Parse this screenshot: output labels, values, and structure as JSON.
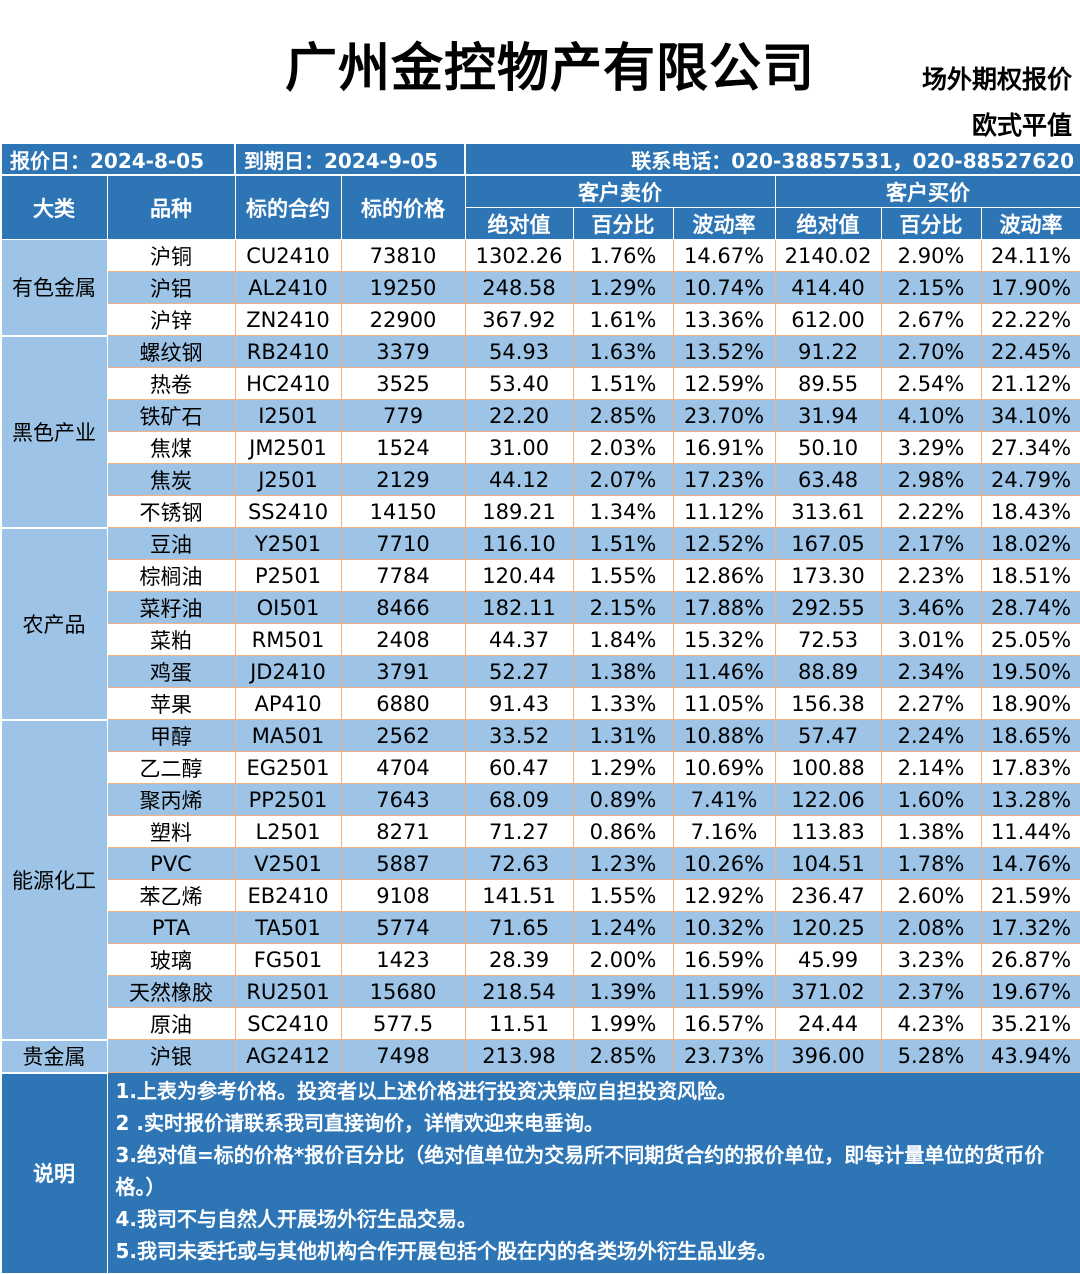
{
  "header": {
    "company": "广州金控物产有限公司",
    "subtitle1": "场外期权报价",
    "subtitle2": "欧式平值"
  },
  "info": {
    "quote_date": "报价日：2024-8-05",
    "expiry_date": "到期日：2024-9-05",
    "contact": "联系电话：020-38857531，020-88527620"
  },
  "columns": {
    "category": "大类",
    "variety": "品种",
    "contract": "标的合约",
    "price": "标的价格",
    "sell_group": "客户卖价",
    "buy_group": "客户买价",
    "abs": "绝对值",
    "pct": "百分比",
    "vol": "波动率"
  },
  "groups": [
    {
      "category": "有色金属",
      "rows": [
        [
          "沪铜",
          "CU2410",
          "73810",
          "1302.26",
          "1.76%",
          "14.67%",
          "2140.02",
          "2.90%",
          "24.11%"
        ],
        [
          "沪铝",
          "AL2410",
          "19250",
          "248.58",
          "1.29%",
          "10.74%",
          "414.40",
          "2.15%",
          "17.90%"
        ],
        [
          "沪锌",
          "ZN2410",
          "22900",
          "367.92",
          "1.61%",
          "13.36%",
          "612.00",
          "2.67%",
          "22.22%"
        ]
      ]
    },
    {
      "category": "黑色产业",
      "rows": [
        [
          "螺纹钢",
          "RB2410",
          "3379",
          "54.93",
          "1.63%",
          "13.52%",
          "91.22",
          "2.70%",
          "22.45%"
        ],
        [
          "热卷",
          "HC2410",
          "3525",
          "53.40",
          "1.51%",
          "12.59%",
          "89.55",
          "2.54%",
          "21.12%"
        ],
        [
          "铁矿石",
          "I2501",
          "779",
          "22.20",
          "2.85%",
          "23.70%",
          "31.94",
          "4.10%",
          "34.10%"
        ],
        [
          "焦煤",
          "JM2501",
          "1524",
          "31.00",
          "2.03%",
          "16.91%",
          "50.10",
          "3.29%",
          "27.34%"
        ],
        [
          "焦炭",
          "J2501",
          "2129",
          "44.12",
          "2.07%",
          "17.23%",
          "63.48",
          "2.98%",
          "24.79%"
        ],
        [
          "不锈钢",
          "SS2410",
          "14150",
          "189.21",
          "1.34%",
          "11.12%",
          "313.61",
          "2.22%",
          "18.43%"
        ]
      ]
    },
    {
      "category": "农产品",
      "rows": [
        [
          "豆油",
          "Y2501",
          "7710",
          "116.10",
          "1.51%",
          "12.52%",
          "167.05",
          "2.17%",
          "18.02%"
        ],
        [
          "棕榈油",
          "P2501",
          "7784",
          "120.44",
          "1.55%",
          "12.86%",
          "173.30",
          "2.23%",
          "18.51%"
        ],
        [
          "菜籽油",
          "OI501",
          "8466",
          "182.11",
          "2.15%",
          "17.88%",
          "292.55",
          "3.46%",
          "28.74%"
        ],
        [
          "菜粕",
          "RM501",
          "2408",
          "44.37",
          "1.84%",
          "15.32%",
          "72.53",
          "3.01%",
          "25.05%"
        ],
        [
          "鸡蛋",
          "JD2410",
          "3791",
          "52.27",
          "1.38%",
          "11.46%",
          "88.89",
          "2.34%",
          "19.50%"
        ],
        [
          "苹果",
          "AP410",
          "6880",
          "91.43",
          "1.33%",
          "11.05%",
          "156.38",
          "2.27%",
          "18.90%"
        ]
      ]
    },
    {
      "category": "能源化工",
      "rows": [
        [
          "甲醇",
          "MA501",
          "2562",
          "33.52",
          "1.31%",
          "10.88%",
          "57.47",
          "2.24%",
          "18.65%"
        ],
        [
          "乙二醇",
          "EG2501",
          "4704",
          "60.47",
          "1.29%",
          "10.69%",
          "100.88",
          "2.14%",
          "17.83%"
        ],
        [
          "聚丙烯",
          "PP2501",
          "7643",
          "68.09",
          "0.89%",
          "7.41%",
          "122.06",
          "1.60%",
          "13.28%"
        ],
        [
          "塑料",
          "L2501",
          "8271",
          "71.27",
          "0.86%",
          "7.16%",
          "113.83",
          "1.38%",
          "11.44%"
        ],
        [
          "PVC",
          "V2501",
          "5887",
          "72.63",
          "1.23%",
          "10.26%",
          "104.51",
          "1.78%",
          "14.76%"
        ],
        [
          "苯乙烯",
          "EB2410",
          "9108",
          "141.51",
          "1.55%",
          "12.92%",
          "236.47",
          "2.60%",
          "21.59%"
        ],
        [
          "PTA",
          "TA501",
          "5774",
          "71.65",
          "1.24%",
          "10.32%",
          "120.25",
          "2.08%",
          "17.32%"
        ],
        [
          "玻璃",
          "FG501",
          "1423",
          "28.39",
          "2.00%",
          "16.59%",
          "45.99",
          "3.23%",
          "26.87%"
        ],
        [
          "天然橡胶",
          "RU2501",
          "15680",
          "218.54",
          "1.39%",
          "11.59%",
          "371.02",
          "2.37%",
          "19.67%"
        ],
        [
          "原油",
          "SC2410",
          "577.5",
          "11.51",
          "1.99%",
          "16.57%",
          "24.44",
          "4.23%",
          "35.21%"
        ]
      ]
    },
    {
      "category": "贵金属",
      "rows": [
        [
          "沪银",
          "AG2412",
          "7498",
          "213.98",
          "2.85%",
          "23.73%",
          "396.00",
          "5.28%",
          "43.94%"
        ]
      ]
    }
  ],
  "notes": {
    "label": "说明",
    "lines": [
      "1.上表为参考价格。投资者以上述价格进行投资决策应自担投资风险。",
      "2 .实时报价请联系我司直接询价，详情欢迎来电垂询。",
      "3.绝对值=标的价格*报价百分比（绝对值单位为交易所不同期货合约的报价单位，即每计量单位的货币价格。）",
      "4.我司不与自然人开展场外衍生品交易。",
      "5.我司未委托或与其他机构合作开展包括个股在内的各类场外衍生品业务。"
    ]
  }
}
